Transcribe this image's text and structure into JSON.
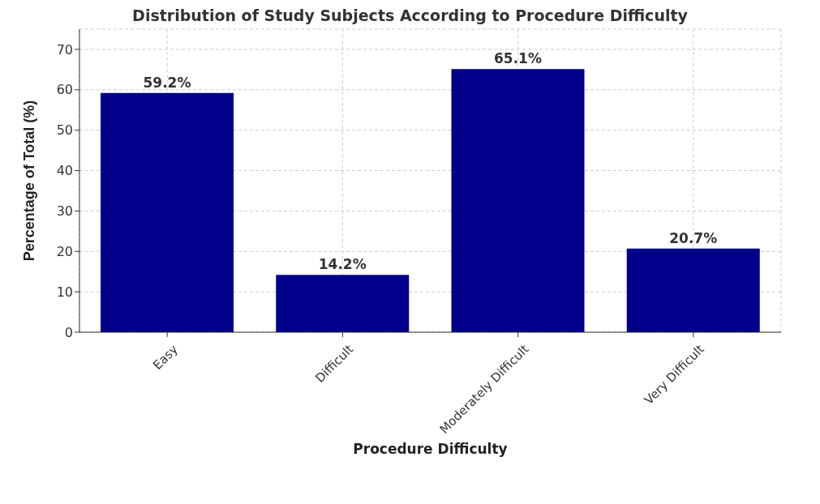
{
  "chart_data": {
    "type": "bar",
    "title": "Distribution of Study Subjects According to Procedure Difficulty",
    "xlabel": "Procedure Difficulty",
    "ylabel": "Percentage of Total (%)",
    "categories": [
      "Easy",
      "Difficult",
      "Moderately Difficult",
      "Very Difficult"
    ],
    "values": [
      59.2,
      14.2,
      65.1,
      20.7
    ],
    "value_labels": [
      "59.2%",
      "14.2%",
      "65.1%",
      "20.7%"
    ],
    "color": "#00008b",
    "ylim": [
      0,
      75
    ],
    "yticks": [
      0,
      10,
      20,
      30,
      40,
      50,
      60,
      70
    ],
    "grid": true
  }
}
